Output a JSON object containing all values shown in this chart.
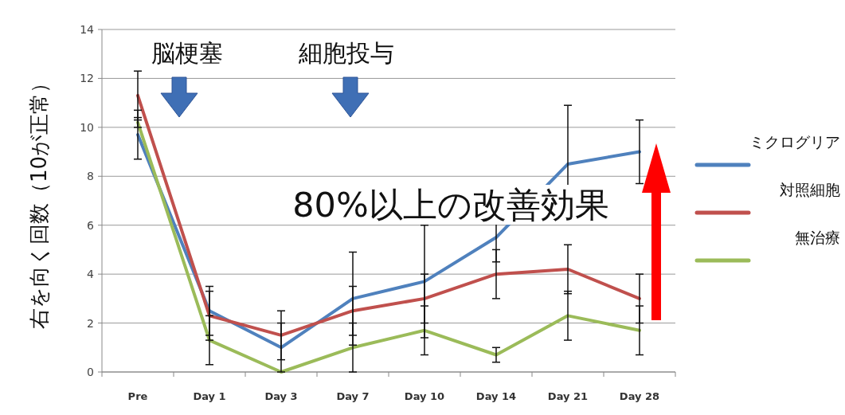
{
  "chart_data": {
    "type": "line",
    "ylabel": "右を向く回数（10が正常）",
    "categories": [
      "Pre",
      "Day 1",
      "Day 3",
      "Day 7",
      "Day 10",
      "Day 14",
      "Day 21",
      "Day 28"
    ],
    "series": [
      {
        "name": "ミクログリア",
        "color": "#4f81bd",
        "values": [
          9.7,
          2.5,
          1.0,
          3.0,
          3.7,
          5.5,
          8.5,
          9.0
        ],
        "errors": [
          1.0,
          1.0,
          1.0,
          1.9,
          2.3,
          1.0,
          2.4,
          1.3
        ]
      },
      {
        "name": "対照細胞",
        "color": "#c0504d",
        "values": [
          11.3,
          2.3,
          1.5,
          2.5,
          3.0,
          4.0,
          4.2,
          3.0
        ],
        "errors": [
          1.0,
          1.0,
          1.0,
          1.0,
          1.0,
          1.0,
          1.0,
          1.0
        ]
      },
      {
        "name": "無治療",
        "color": "#9bbb59",
        "values": [
          10.2,
          1.3,
          0.0,
          1.0,
          1.7,
          0.7,
          2.3,
          1.7
        ],
        "errors": [
          0.2,
          1.0,
          null,
          1.0,
          1.0,
          0.3,
          1.0,
          1.0
        ]
      }
    ],
    "ylim": [
      0,
      14
    ],
    "yticks": [
      0,
      2,
      4,
      6,
      8,
      10,
      12,
      14
    ],
    "grid": "y",
    "legend": "right",
    "marker": "none",
    "line_style": "solid",
    "annotations": [
      "脳梗塞",
      "細胞投与",
      "80%以上の改善効果"
    ]
  }
}
